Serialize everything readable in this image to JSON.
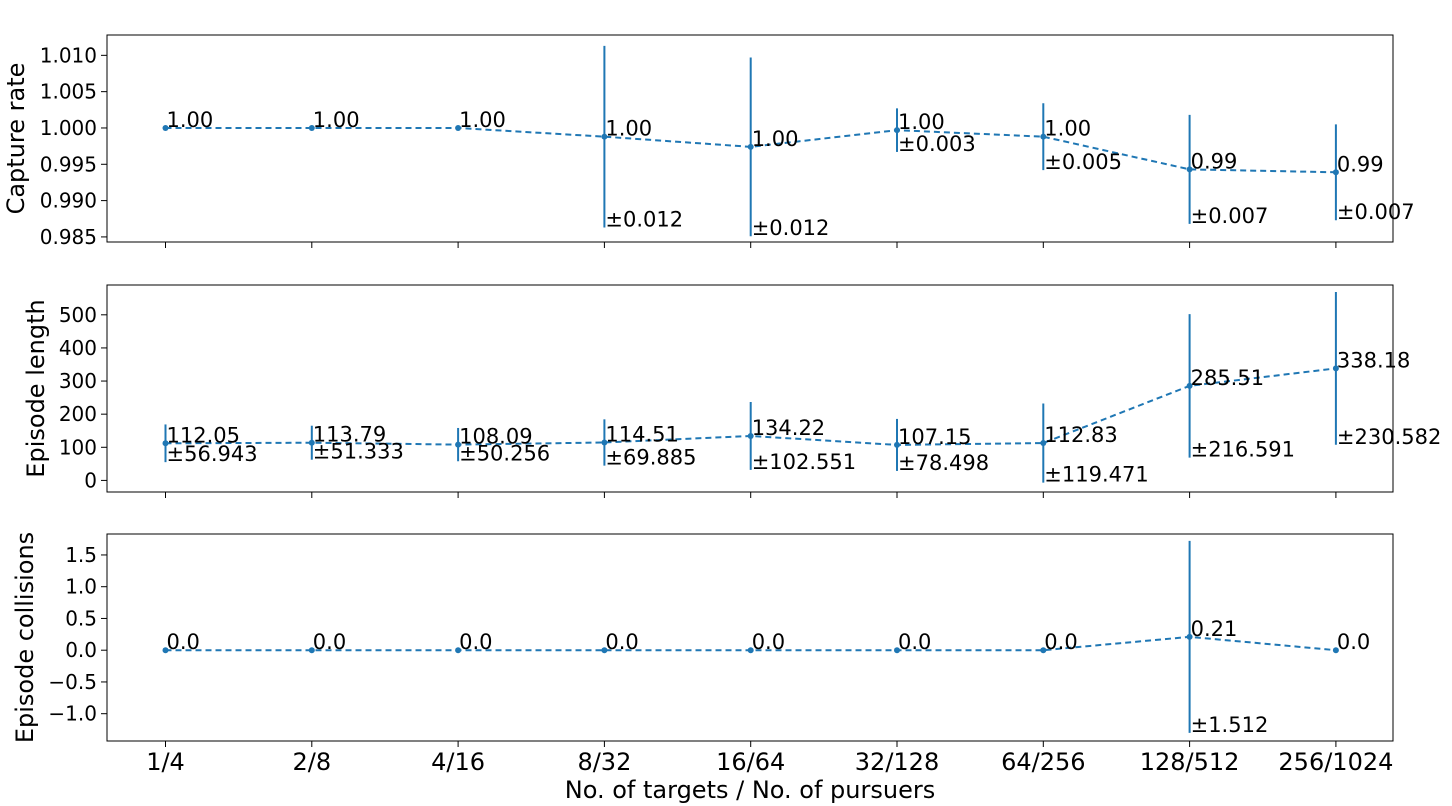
{
  "chart_data": {
    "type": "line",
    "xlabel": "No. of targets / No. of pursuers",
    "categories": [
      "1/4",
      "2/8",
      "4/16",
      "8/32",
      "16/64",
      "32/128",
      "64/256",
      "128/512",
      "256/1024"
    ],
    "series_color": "#1f77b4",
    "grid": false,
    "panels": [
      {
        "ylabel": "Capture rate",
        "ylim": [
          0.9843,
          1.0128
        ],
        "yticks": [
          0.985,
          0.99,
          0.995,
          1.0,
          1.005,
          1.01
        ],
        "ytick_labels": [
          "0.985",
          "0.990",
          "0.995",
          "1.000",
          "1.005",
          "1.010"
        ],
        "values": [
          1.0,
          1.0,
          1.0,
          0.9988,
          0.9974,
          0.9997,
          0.9988,
          0.9943,
          0.9939
        ],
        "errors": [
          0,
          0,
          0,
          0.0125,
          0.0123,
          0.003,
          0.0046,
          0.0075,
          0.0066
        ],
        "value_labels": [
          "1.00",
          "1.00",
          "1.00",
          "1.00",
          "1.00",
          "1.00",
          "1.00",
          "0.99",
          "0.99"
        ],
        "error_labels": [
          "",
          "",
          "",
          "±0.012",
          "±0.012",
          "±0.003",
          "±0.005",
          "±0.007",
          "±0.007"
        ]
      },
      {
        "ylabel": "Episode length",
        "ylim": [
          -35,
          590
        ],
        "yticks": [
          0,
          100,
          200,
          300,
          400,
          500
        ],
        "ytick_labels": [
          "0",
          "100",
          "200",
          "300",
          "400",
          "500"
        ],
        "values": [
          112.05,
          113.79,
          108.09,
          114.51,
          134.22,
          107.15,
          112.83,
          285.51,
          338.18
        ],
        "errors": [
          56.943,
          51.333,
          50.256,
          69.885,
          102.551,
          78.498,
          119.471,
          216.591,
          230.582
        ],
        "value_labels": [
          "112.05",
          "113.79",
          "108.09",
          "114.51",
          "134.22",
          "107.15",
          "112.83",
          "285.51",
          "338.18"
        ],
        "error_labels": [
          "±56.943",
          "±51.333",
          "±50.256",
          "±69.885",
          "±102.551",
          "±78.498",
          "±119.471",
          "±216.591",
          "±230.582"
        ]
      },
      {
        "ylabel": "Episode collisions",
        "ylim": [
          -1.43,
          1.83
        ],
        "yticks": [
          -1.0,
          -0.5,
          0.0,
          0.5,
          1.0,
          1.5
        ],
        "ytick_labels": [
          "−1.0",
          "−0.5",
          "0.0",
          "0.5",
          "1.0",
          "1.5"
        ],
        "values": [
          0.0,
          0.0,
          0.0,
          0.0,
          0.0,
          0.0,
          0.0,
          0.21,
          0.0
        ],
        "errors": [
          0,
          0,
          0,
          0,
          0,
          0,
          0,
          1.512,
          0
        ],
        "value_labels": [
          "0.0",
          "0.0",
          "0.0",
          "0.0",
          "0.0",
          "0.0",
          "0.0",
          "0.21",
          "0.0"
        ],
        "error_labels": [
          "",
          "",
          "",
          "",
          "",
          "",
          "",
          "±1.512",
          ""
        ]
      }
    ]
  }
}
